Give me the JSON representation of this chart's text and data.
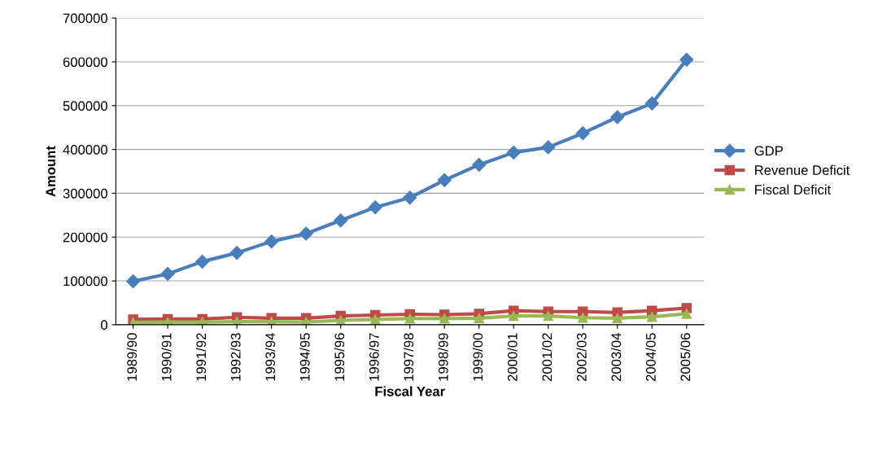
{
  "chart_data": {
    "type": "line",
    "xlabel": "Fiscal Year",
    "ylabel": "Amount",
    "categories": [
      "1989/90",
      "1990/91",
      "1991/92",
      "1992/93",
      "1993/94",
      "1994/95",
      "1995/96",
      "1996/97",
      "1997/98",
      "1998/99",
      "1999/00",
      "2000/01",
      "2001/02",
      "2002/03",
      "2003/04",
      "2004/05",
      "2005/06"
    ],
    "series": [
      {
        "name": "GDP",
        "color": "#4a7ebb",
        "marker": "diamond",
        "values": [
          99000,
          116000,
          144000,
          164000,
          190000,
          208000,
          238000,
          268000,
          290000,
          330000,
          365000,
          393000,
          405000,
          437000,
          474000,
          505000,
          605000
        ]
      },
      {
        "name": "Revenue Deficit",
        "color": "#be4b48",
        "marker": "square",
        "values": [
          12000,
          13000,
          13000,
          17000,
          15000,
          15000,
          20000,
          22000,
          24000,
          23000,
          25000,
          32000,
          30000,
          30000,
          28000,
          32000,
          38000
        ]
      },
      {
        "name": "Fiscal Deficit",
        "color": "#98b954",
        "marker": "triangle",
        "values": [
          5000,
          6000,
          6000,
          7000,
          7000,
          6000,
          10000,
          12000,
          14000,
          14000,
          15000,
          20000,
          20000,
          16000,
          15000,
          18000,
          25000
        ]
      }
    ],
    "ylim": [
      0,
      700000
    ],
    "yticks": [
      0,
      100000,
      200000,
      300000,
      400000,
      500000,
      600000,
      700000
    ],
    "grid": "y",
    "legend": "right"
  }
}
